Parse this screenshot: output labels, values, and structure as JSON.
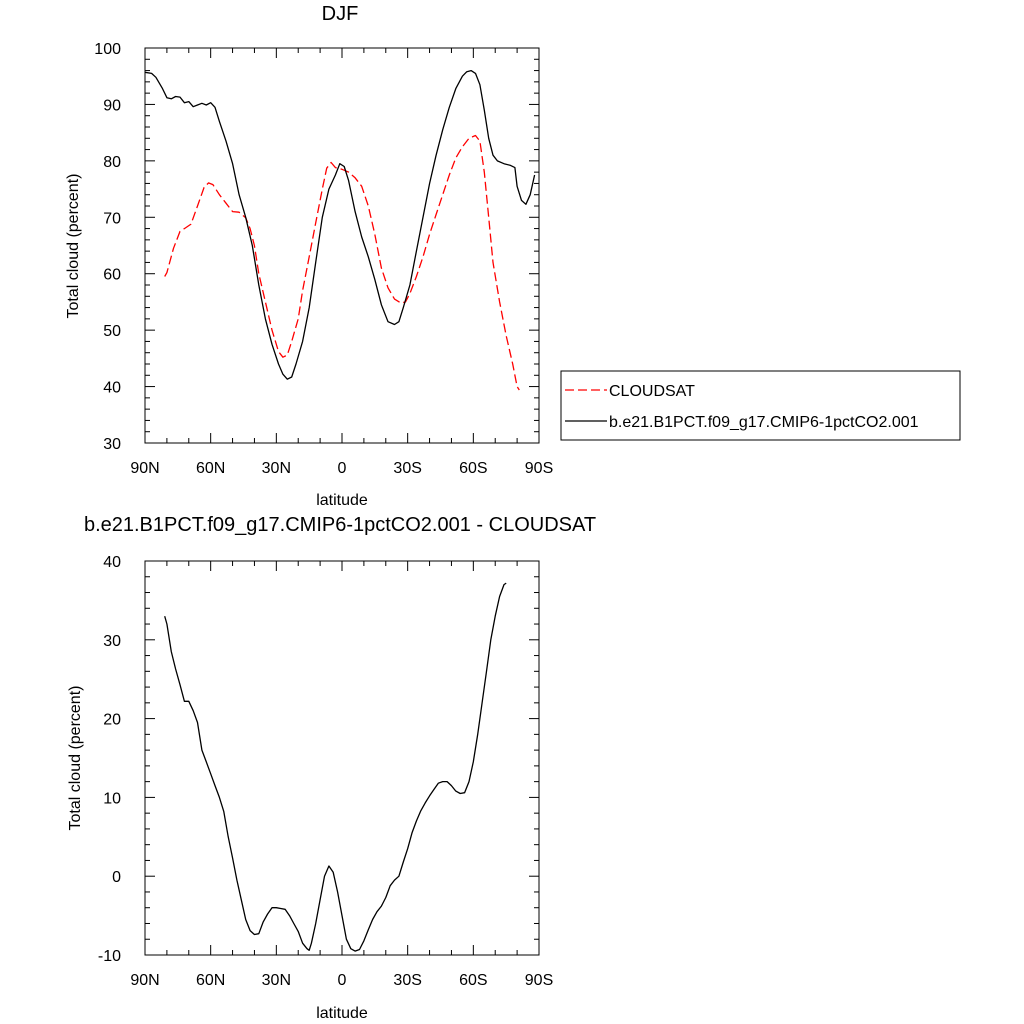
{
  "chart_data": [
    {
      "type": "line",
      "title": "DJF",
      "xlabel": "latitude",
      "ylabel": "Total cloud (percent)",
      "xlim": [
        -90,
        90
      ],
      "ylim": [
        30,
        100
      ],
      "x_ticks": [
        {
          "value": -90,
          "label": "90N"
        },
        {
          "value": -60,
          "label": "60N"
        },
        {
          "value": -30,
          "label": "30N"
        },
        {
          "value": 0,
          "label": "0"
        },
        {
          "value": 30,
          "label": "30S"
        },
        {
          "value": 60,
          "label": "60S"
        },
        {
          "value": 90,
          "label": "90S"
        }
      ],
      "y_ticks": [
        30,
        40,
        50,
        60,
        70,
        80,
        90,
        100
      ],
      "legend_position": "right",
      "series": [
        {
          "name": "CLOUDSAT",
          "color": "#ff0000",
          "dash": "dashed",
          "points": [
            [
              -81,
              59.5
            ],
            [
              -80,
              60.2
            ],
            [
              -77,
              64.5
            ],
            [
              -74,
              67.5
            ],
            [
              -72,
              68
            ],
            [
              -69,
              68.8
            ],
            [
              -66,
              72
            ],
            [
              -63,
              75.3
            ],
            [
              -61,
              76.1
            ],
            [
              -59,
              75.8
            ],
            [
              -56,
              74
            ],
            [
              -53,
              72.5
            ],
            [
              -50,
              71
            ],
            [
              -47,
              70.9
            ],
            [
              -44,
              69.9
            ],
            [
              -42,
              68
            ],
            [
              -40,
              65
            ],
            [
              -38,
              60
            ],
            [
              -35,
              55
            ],
            [
              -32,
              50
            ],
            [
              -29,
              46.2
            ],
            [
              -27,
              45.2
            ],
            [
              -25,
              45.6
            ],
            [
              -23,
              48
            ],
            [
              -20,
              52
            ],
            [
              -18,
              57
            ],
            [
              -15,
              63
            ],
            [
              -12,
              69
            ],
            [
              -9,
              75
            ],
            [
              -7,
              78.7
            ],
            [
              -5,
              79.7
            ],
            [
              -3,
              78.8
            ],
            [
              0,
              78.5
            ],
            [
              3,
              78
            ],
            [
              6,
              77
            ],
            [
              9,
              75.5
            ],
            [
              12,
              72
            ],
            [
              15,
              67
            ],
            [
              18,
              61
            ],
            [
              21,
              57.5
            ],
            [
              24,
              55.5
            ],
            [
              27,
              54.8
            ],
            [
              29,
              55
            ],
            [
              31,
              56.5
            ],
            [
              34,
              59.5
            ],
            [
              37,
              63
            ],
            [
              40,
              67
            ],
            [
              43,
              70.5
            ],
            [
              46,
              74
            ],
            [
              49,
              77.5
            ],
            [
              52,
              80.5
            ],
            [
              55,
              82.5
            ],
            [
              58,
              84
            ],
            [
              61,
              84.5
            ],
            [
              63,
              83.5
            ],
            [
              65,
              78
            ],
            [
              67,
              70
            ],
            [
              69,
              62
            ],
            [
              72,
              55
            ],
            [
              75,
              49
            ],
            [
              78,
              44
            ],
            [
              80,
              40
            ],
            [
              81,
              39.4
            ]
          ]
        },
        {
          "name": "b.e21.B1PCT.f09_g17.CMIP6-1pctCO2.001",
          "color": "#000000",
          "dash": "solid",
          "points": [
            [
              -90,
              95.7
            ],
            [
              -87,
              95.5
            ],
            [
              -85,
              94.8
            ],
            [
              -82,
              92.8
            ],
            [
              -80,
              91.2
            ],
            [
              -78,
              91
            ],
            [
              -76,
              91.4
            ],
            [
              -74,
              91.3
            ],
            [
              -72,
              90.3
            ],
            [
              -70,
              90.5
            ],
            [
              -68,
              89.6
            ],
            [
              -66,
              89.9
            ],
            [
              -64,
              90.2
            ],
            [
              -62,
              89.9
            ],
            [
              -60,
              90.3
            ],
            [
              -58,
              89.5
            ],
            [
              -56,
              87
            ],
            [
              -53,
              83.5
            ],
            [
              -50,
              79.5
            ],
            [
              -47,
              74
            ],
            [
              -44,
              70
            ],
            [
              -41,
              65
            ],
            [
              -38,
              58
            ],
            [
              -35,
              52
            ],
            [
              -32,
              47.5
            ],
            [
              -29,
              44
            ],
            [
              -27,
              42.2
            ],
            [
              -25,
              41.3
            ],
            [
              -23,
              41.7
            ],
            [
              -21,
              44
            ],
            [
              -18,
              48
            ],
            [
              -15,
              54
            ],
            [
              -12,
              62
            ],
            [
              -9,
              70
            ],
            [
              -6,
              75
            ],
            [
              -3,
              77.5
            ],
            [
              -1,
              79.5
            ],
            [
              1,
              79
            ],
            [
              3,
              76.5
            ],
            [
              6,
              71
            ],
            [
              9,
              66.5
            ],
            [
              12,
              63
            ],
            [
              15,
              59
            ],
            [
              18,
              54.5
            ],
            [
              21,
              51.5
            ],
            [
              24,
              51
            ],
            [
              26,
              51.5
            ],
            [
              28,
              54
            ],
            [
              31,
              58
            ],
            [
              34,
              64
            ],
            [
              37,
              70
            ],
            [
              40,
              76
            ],
            [
              43,
              81
            ],
            [
              46,
              85.5
            ],
            [
              49,
              89.5
            ],
            [
              52,
              92.8
            ],
            [
              55,
              95
            ],
            [
              57,
              95.8
            ],
            [
              59,
              96
            ],
            [
              61,
              95.5
            ],
            [
              63,
              93.5
            ],
            [
              65,
              89
            ],
            [
              67,
              84
            ],
            [
              69,
              81
            ],
            [
              71,
              80
            ],
            [
              74,
              79.5
            ],
            [
              77,
              79.2
            ],
            [
              79,
              78.8
            ],
            [
              80,
              75.5
            ],
            [
              82,
              73
            ],
            [
              84,
              72.3
            ],
            [
              86,
              74
            ],
            [
              88,
              77.5
            ]
          ]
        }
      ]
    },
    {
      "type": "line",
      "title": "b.e21.B1PCT.f09_g17.CMIP6-1pctCO2.001 - CLOUDSAT",
      "xlabel": "latitude",
      "ylabel": "Total cloud (percent)",
      "xlim": [
        -90,
        90
      ],
      "ylim": [
        -10,
        40
      ],
      "x_ticks": [
        {
          "value": -90,
          "label": "90N"
        },
        {
          "value": -60,
          "label": "60N"
        },
        {
          "value": -30,
          "label": "30N"
        },
        {
          "value": 0,
          "label": "0"
        },
        {
          "value": 30,
          "label": "30S"
        },
        {
          "value": 60,
          "label": "60S"
        },
        {
          "value": 90,
          "label": "90S"
        }
      ],
      "y_ticks": [
        -10,
        0,
        10,
        20,
        30,
        40
      ],
      "series": [
        {
          "color": "#000000",
          "dash": "solid",
          "points": [
            [
              -81,
              33
            ],
            [
              -80,
              32
            ],
            [
              -78,
              28.5
            ],
            [
              -76,
              26.3
            ],
            [
              -74,
              24.3
            ],
            [
              -72,
              22.2
            ],
            [
              -70,
              22.2
            ],
            [
              -68,
              21
            ],
            [
              -66,
              19.5
            ],
            [
              -64,
              16
            ],
            [
              -62,
              14.5
            ],
            [
              -60,
              13
            ],
            [
              -58,
              11.5
            ],
            [
              -56,
              10
            ],
            [
              -54,
              8.2
            ],
            [
              -52,
              5
            ],
            [
              -50,
              2.3
            ],
            [
              -48,
              -0.5
            ],
            [
              -46,
              -3
            ],
            [
              -44,
              -5.5
            ],
            [
              -42,
              -6.9
            ],
            [
              -40,
              -7.4
            ],
            [
              -38,
              -7.3
            ],
            [
              -36,
              -5.8
            ],
            [
              -34,
              -4.8
            ],
            [
              -32,
              -4
            ],
            [
              -30,
              -4
            ],
            [
              -28,
              -4.1
            ],
            [
              -26,
              -4.2
            ],
            [
              -24,
              -5
            ],
            [
              -22,
              -6
            ],
            [
              -20,
              -7
            ],
            [
              -18,
              -8.5
            ],
            [
              -16,
              -9.2
            ],
            [
              -15,
              -9.4
            ],
            [
              -14,
              -8.5
            ],
            [
              -12,
              -6
            ],
            [
              -10,
              -3
            ],
            [
              -8,
              0
            ],
            [
              -6,
              1.3
            ],
            [
              -4,
              0.5
            ],
            [
              -2,
              -2
            ],
            [
              0,
              -5
            ],
            [
              2,
              -8
            ],
            [
              4,
              -9.2
            ],
            [
              6,
              -9.5
            ],
            [
              8,
              -9.3
            ],
            [
              10,
              -8.2
            ],
            [
              12,
              -6.8
            ],
            [
              14,
              -5.5
            ],
            [
              16,
              -4.5
            ],
            [
              18,
              -3.8
            ],
            [
              20,
              -2.7
            ],
            [
              22,
              -1.2
            ],
            [
              24,
              -0.5
            ],
            [
              26,
              0
            ],
            [
              28,
              1.8
            ],
            [
              30,
              3.5
            ],
            [
              32,
              5.5
            ],
            [
              34,
              7
            ],
            [
              36,
              8.3
            ],
            [
              38,
              9.3
            ],
            [
              40,
              10.2
            ],
            [
              42,
              11
            ],
            [
              44,
              11.8
            ],
            [
              46,
              12
            ],
            [
              48,
              12
            ],
            [
              50,
              11.5
            ],
            [
              52,
              10.8
            ],
            [
              54,
              10.5
            ],
            [
              56,
              10.6
            ],
            [
              58,
              12
            ],
            [
              60,
              14.5
            ],
            [
              62,
              18
            ],
            [
              64,
              22
            ],
            [
              66,
              26
            ],
            [
              68,
              30
            ],
            [
              70,
              33
            ],
            [
              72,
              35.5
            ],
            [
              74,
              37
            ],
            [
              75,
              37.2
            ]
          ]
        }
      ]
    }
  ]
}
